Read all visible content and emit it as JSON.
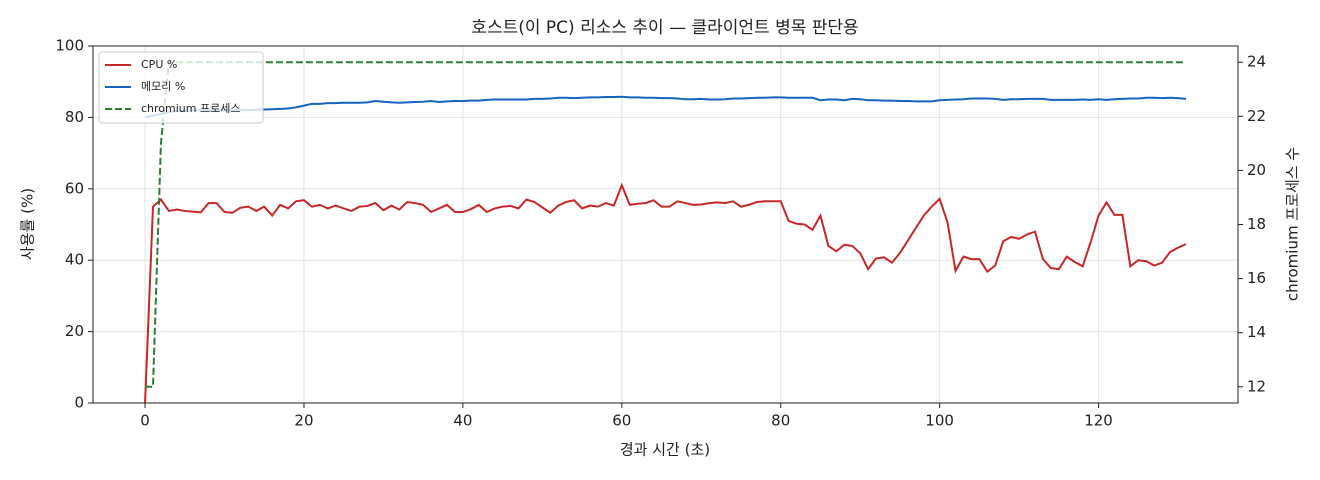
{
  "chart_data": {
    "type": "line",
    "title": "호스트(이 PC) 리소스 추이 — 클라이언트 병목 판단용",
    "xlabel": "경과 시간 (초)",
    "ylabel": "사용률 (%)",
    "y2label": "chromium 프로세스 수",
    "x": [
      0,
      1,
      2,
      3,
      4,
      5,
      6,
      7,
      8,
      9,
      10,
      11,
      12,
      13,
      14,
      15,
      16,
      17,
      18,
      19,
      20,
      21,
      22,
      23,
      24,
      25,
      26,
      27,
      28,
      29,
      30,
      31,
      32,
      33,
      34,
      35,
      36,
      37,
      38,
      39,
      40,
      41,
      42,
      43,
      44,
      45,
      46,
      47,
      48,
      49,
      50,
      51,
      52,
      53,
      54,
      55,
      56,
      57,
      58,
      59,
      60,
      61,
      62,
      63,
      64,
      65,
      66,
      67,
      68,
      69,
      70,
      71,
      72,
      73,
      74,
      75,
      76,
      77,
      78,
      79,
      80,
      81,
      82,
      83,
      84,
      85,
      86,
      87,
      88,
      89,
      90,
      91,
      92,
      93,
      94,
      95,
      96,
      97,
      98,
      99,
      100,
      101,
      102,
      103,
      104,
      105,
      106,
      107,
      108,
      109,
      110,
      111,
      112,
      113,
      114,
      115,
      116,
      117,
      118,
      119,
      120,
      121,
      122,
      123,
      124,
      125,
      126,
      127,
      128,
      129,
      130,
      131
    ],
    "series": [
      {
        "name": "CPU %",
        "color": "#c62828",
        "axis": "y",
        "dash": false,
        "values": [
          0,
          55,
          57,
          53.8,
          54.2,
          53.8,
          53.6,
          53.4,
          56,
          56,
          53.5,
          53.3,
          54.7,
          55,
          53.8,
          55,
          52.5,
          55.5,
          54.5,
          56.5,
          56.8,
          55,
          55.5,
          54.5,
          55.3,
          54.5,
          53.8,
          55,
          55.2,
          56,
          54,
          55.3,
          54.2,
          56.3,
          56,
          55.5,
          53.5,
          54.5,
          55.5,
          53.5,
          53.5,
          54.3,
          55.5,
          53.5,
          54.5,
          55,
          55.2,
          54.5,
          57,
          56.3,
          54.8,
          53.3,
          55.3,
          56.3,
          56.8,
          54.5,
          55.3,
          55,
          56,
          55.3,
          61,
          55.5,
          55.8,
          56,
          56.8,
          55,
          55,
          56.5,
          56,
          55.5,
          55.6,
          56,
          56.2,
          56,
          56.5,
          55,
          55.5,
          56.3,
          56.5,
          56.5,
          56.5,
          51,
          50.2,
          50,
          48.5,
          52.5,
          44,
          42.5,
          44.3,
          44,
          42,
          37.5,
          40.5,
          40.8,
          39.3,
          42,
          45.5,
          49,
          52.5,
          55,
          57.2,
          50.5,
          37,
          41,
          40.3,
          40.3,
          36.8,
          38.5,
          45.3,
          46.5,
          46,
          47.2,
          48,
          40.3,
          37.8,
          37.5,
          41,
          39.5,
          38.3,
          45,
          52.5,
          56.2,
          52.7,
          52.7,
          38.3,
          40,
          39.7,
          38.5,
          39.3,
          42.3,
          43.5,
          44.5
        ]
      },
      {
        "name": "메모리 %",
        "color": "#1565c0",
        "axis": "y",
        "dash": false,
        "values": [
          80,
          80.5,
          81,
          81.5,
          81.8,
          81.8,
          82,
          82,
          82,
          82,
          82,
          82,
          82,
          82,
          82.1,
          82.2,
          82.3,
          82.4,
          82.5,
          82.8,
          83.3,
          83.8,
          83.8,
          84,
          84,
          84.1,
          84.1,
          84.1,
          84.2,
          84.6,
          84.4,
          84.2,
          84.1,
          84.2,
          84.3,
          84.4,
          84.6,
          84.3,
          84.5,
          84.6,
          84.6,
          84.7,
          84.7,
          84.9,
          85,
          85,
          85,
          85,
          85,
          85.2,
          85.2,
          85.3,
          85.5,
          85.5,
          85.4,
          85.5,
          85.6,
          85.6,
          85.7,
          85.7,
          85.8,
          85.6,
          85.6,
          85.5,
          85.5,
          85.4,
          85.4,
          85.3,
          85.1,
          85.1,
          85.2,
          85,
          85,
          85.1,
          85.3,
          85.3,
          85.4,
          85.5,
          85.5,
          85.6,
          85.6,
          85.5,
          85.5,
          85.5,
          85.5,
          84.8,
          85,
          85,
          84.8,
          85.2,
          85.1,
          84.8,
          84.8,
          84.7,
          84.7,
          84.6,
          84.6,
          84.5,
          84.5,
          84.5,
          84.8,
          84.9,
          85,
          85.1,
          85.3,
          85.3,
          85.3,
          85.2,
          84.9,
          85.1,
          85.1,
          85.2,
          85.2,
          85.2,
          84.9,
          84.9,
          84.9,
          84.9,
          85,
          84.9,
          85.1,
          84.9,
          85.1,
          85.2,
          85.3,
          85.3,
          85.5,
          85.5,
          85.4,
          85.5,
          85.4,
          85.2
        ]
      },
      {
        "name": "chromium 프로세스",
        "color": "#2e7d32",
        "axis": "y2",
        "dash": true,
        "values": [
          12,
          12,
          21,
          24,
          24,
          24,
          24,
          24,
          24,
          24,
          24,
          24,
          24,
          24,
          24,
          24,
          24,
          24,
          24,
          24,
          24,
          24,
          24,
          24,
          24,
          24,
          24,
          24,
          24,
          24,
          24,
          24,
          24,
          24,
          24,
          24,
          24,
          24,
          24,
          24,
          24,
          24,
          24,
          24,
          24,
          24,
          24,
          24,
          24,
          24,
          24,
          24,
          24,
          24,
          24,
          24,
          24,
          24,
          24,
          24,
          24,
          24,
          24,
          24,
          24,
          24,
          24,
          24,
          24,
          24,
          24,
          24,
          24,
          24,
          24,
          24,
          24,
          24,
          24,
          24,
          24,
          24,
          24,
          24,
          24,
          24,
          24,
          24,
          24,
          24,
          24,
          24,
          24,
          24,
          24,
          24,
          24,
          24,
          24,
          24,
          24,
          24,
          24,
          24,
          24,
          24,
          24,
          24,
          24,
          24,
          24,
          24,
          24,
          24,
          24,
          24,
          24,
          24,
          24,
          24,
          24,
          24,
          24,
          24,
          24,
          24,
          24,
          24,
          24,
          24,
          24,
          24
        ]
      }
    ],
    "xlim": [
      -6.55,
      137.55
    ],
    "xticks": [
      0,
      20,
      40,
      60,
      80,
      100,
      120
    ],
    "ylim": [
      0,
      100
    ],
    "yticks": [
      0,
      20,
      40,
      60,
      80,
      100
    ],
    "y2lim": [
      11.4,
      24.6
    ],
    "y2ticks": [
      12,
      14,
      16,
      18,
      20,
      22,
      24
    ],
    "grid": true,
    "legend": "upper-left"
  }
}
